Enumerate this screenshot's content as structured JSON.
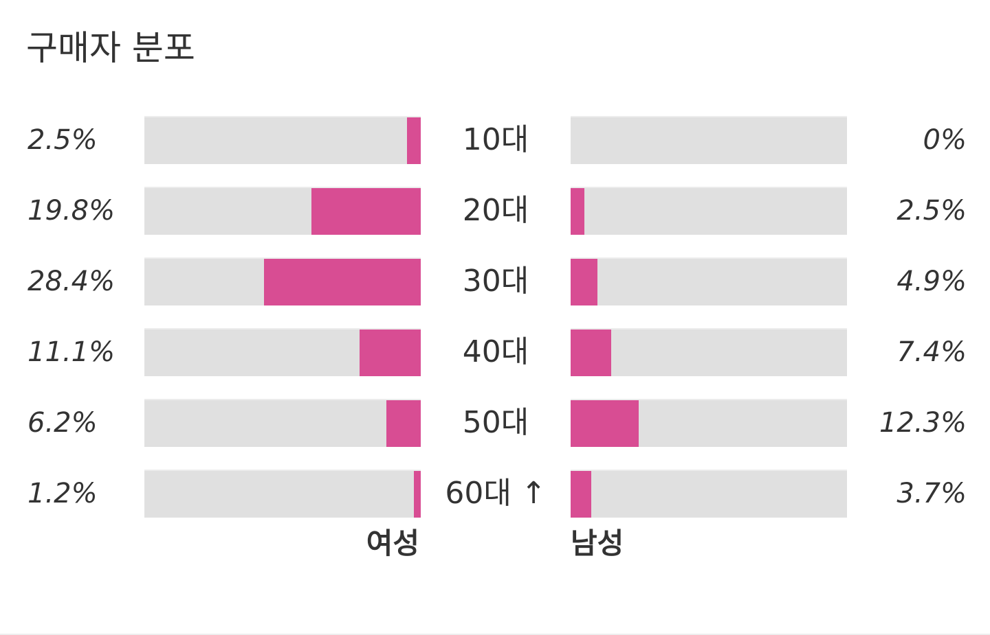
{
  "title": "구매자 분포",
  "chart_data": {
    "type": "bar",
    "orientation": "horizontal",
    "layout": "butterfly",
    "title": "구매자 분포",
    "categories": [
      "10대",
      "20대",
      "30대",
      "40대",
      "50대",
      "60대 ↑"
    ],
    "series": [
      {
        "name": "여성",
        "values": [
          2.5,
          19.8,
          28.4,
          11.1,
          6.2,
          1.2
        ],
        "labels": [
          "2.5%",
          "19.8%",
          "28.4%",
          "11.1%",
          "6.2%",
          "1.2%"
        ],
        "side": "left"
      },
      {
        "name": "남성",
        "values": [
          0,
          2.5,
          4.9,
          7.4,
          12.3,
          3.7
        ],
        "labels": [
          "0%",
          "2.5%",
          "4.9%",
          "7.4%",
          "12.3%",
          "3.7%"
        ],
        "side": "right"
      }
    ],
    "xlim": [
      0,
      50
    ],
    "unit": "%",
    "grid": false,
    "legend": "bottom-center"
  },
  "colors": {
    "bar": "#d84d93",
    "track": "#e0e0e0",
    "text": "#333333"
  }
}
